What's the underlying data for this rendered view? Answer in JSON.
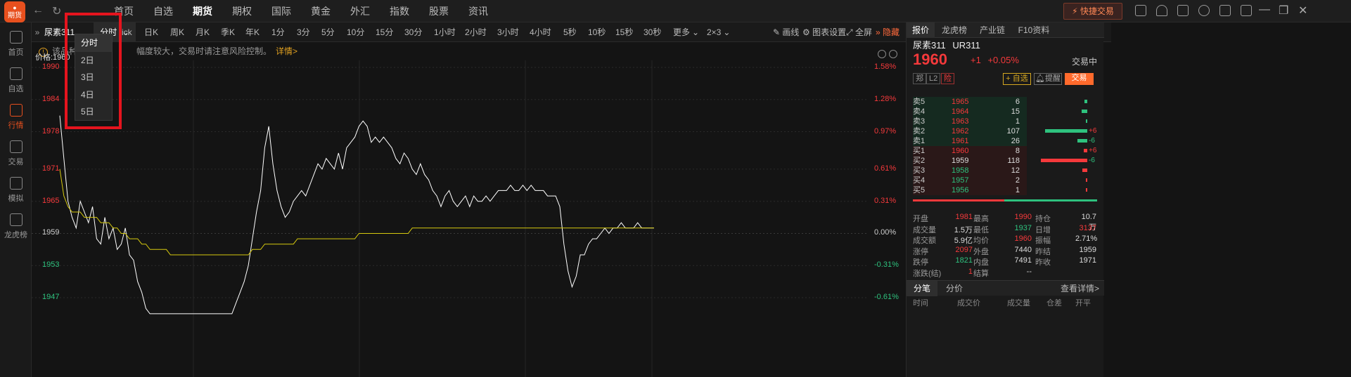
{
  "app": {
    "logo_label": "期货"
  },
  "nav": [
    "首页",
    "自选",
    "期货",
    "期权",
    "国际",
    "黄金",
    "外汇",
    "指数",
    "股票",
    "资讯"
  ],
  "nav_active": 2,
  "quick_trade": "快捷交易",
  "sidebar": [
    {
      "label": "首页",
      "icon": "home-icon"
    },
    {
      "label": "自选",
      "icon": "watchlist-icon"
    },
    {
      "label": "行情",
      "icon": "market-icon"
    },
    {
      "label": "交易",
      "icon": "trade-icon"
    },
    {
      "label": "模拟",
      "icon": "gamepad-icon"
    },
    {
      "label": "龙虎榜",
      "icon": "database-icon"
    }
  ],
  "sidebar_active": 2,
  "toolbar": {
    "symbol": "尿素311",
    "period": "分时",
    "tick_partial": "ick",
    "periods": [
      "日K",
      "周K",
      "月K",
      "季K",
      "年K",
      "1分",
      "3分",
      "5分",
      "10分",
      "15分",
      "30分",
      "1小时",
      "2小时",
      "3小时",
      "4小时",
      "5秒",
      "10秒",
      "15秒",
      "30秒",
      "更多",
      "2×3"
    ],
    "draw": "画线",
    "settings": "图表设置",
    "fullscreen": "全屏",
    "hide": "隐藏"
  },
  "notice": {
    "text_a": "该品种近",
    "text_b": "幅度较大，交易时请注意风险控制。",
    "more": "详情>"
  },
  "dropdown": [
    "分时",
    "2日",
    "3日",
    "4日",
    "5日"
  ],
  "price_label": "价格:1960",
  "chart": {
    "up": "#f5393b",
    "down": "#2ec27e",
    "line": "#ffffff",
    "avg": "#d6c90e"
  },
  "chart_data": {
    "type": "line",
    "ylim": [
      1944,
      1992
    ],
    "y_ticks": [
      1990,
      1984,
      1978,
      1971,
      1965,
      1959,
      1953,
      1947
    ],
    "pct_ticks": [
      "1.58%",
      "1.28%",
      "0.97%",
      "0.61%",
      "0.31%",
      "0.00%",
      "-0.31%",
      "-0.61%"
    ],
    "series": [
      {
        "values": [
          1981,
          1973,
          1965,
          1962,
          1960,
          1965,
          1963,
          1961,
          1964,
          1958,
          1957,
          1962,
          1958,
          1960,
          1956,
          1957,
          1960,
          1955,
          1954,
          1950,
          1948,
          1945,
          1944,
          1944,
          1944,
          1944,
          1944,
          1944,
          1944,
          1944,
          1944,
          1944,
          1944,
          1944,
          1944,
          1944,
          1944,
          1944,
          1944,
          1944,
          1944,
          1944,
          1944,
          1946,
          1948,
          1950,
          1953,
          1958,
          1963,
          1967,
          1975,
          1979,
          1972,
          1967,
          1964,
          1962,
          1963,
          1965,
          1966,
          1967,
          1966,
          1968,
          1970,
          1972,
          1971,
          1973,
          1972,
          1971,
          1974,
          1971,
          1975,
          1976,
          1977,
          1979,
          1980,
          1979,
          1976,
          1977,
          1976,
          1977,
          1976,
          1975,
          1973,
          1972,
          1974,
          1973,
          1971,
          1970,
          1972,
          1970,
          1969,
          1967,
          1966,
          1964,
          1966,
          1967,
          1965,
          1964,
          1965,
          1966,
          1964,
          1966,
          1965,
          1965,
          1966,
          1965,
          1966,
          1967,
          1967,
          1967,
          1968,
          1967,
          1967,
          1968,
          1967,
          1968,
          1967,
          1967,
          1967,
          1966,
          1966,
          1966,
          1964,
          1957,
          1952,
          1949,
          1951,
          1955,
          1955,
          1957,
          1958,
          1958,
          1959,
          1960,
          1959,
          1960,
          1960,
          1961,
          1960,
          1960,
          1960,
          1961,
          1960,
          1960,
          1960,
          1960
        ]
      },
      {
        "values": [
          1971,
          1966,
          1964,
          1963,
          1963,
          1963,
          1962,
          1962,
          1962,
          1962,
          1961,
          1961,
          1961,
          1960,
          1960,
          1959,
          1959,
          1958,
          1958,
          1958,
          1957,
          1957,
          1956,
          1956,
          1956,
          1956,
          1956,
          1955,
          1955,
          1955,
          1955,
          1955,
          1955,
          1955,
          1955,
          1955,
          1955,
          1955,
          1955,
          1955,
          1955,
          1955,
          1955,
          1955,
          1955,
          1955,
          1955,
          1956,
          1956,
          1956,
          1957,
          1957,
          1957,
          1957,
          1957,
          1957,
          1957,
          1957,
          1958,
          1958,
          1958,
          1958,
          1958,
          1958,
          1958,
          1958,
          1958,
          1958,
          1958,
          1958,
          1958,
          1958,
          1958,
          1959,
          1959,
          1959,
          1959,
          1959,
          1959,
          1959,
          1959,
          1959,
          1959,
          1959,
          1959,
          1959,
          1960,
          1960,
          1960,
          1960,
          1960,
          1960,
          1960,
          1960,
          1960,
          1960,
          1960,
          1960,
          1960,
          1960,
          1960,
          1960,
          1960,
          1960,
          1960,
          1960,
          1960,
          1960,
          1960,
          1960,
          1960,
          1960,
          1960,
          1960,
          1960,
          1960,
          1960,
          1960,
          1960,
          1960,
          1960,
          1960,
          1960,
          1960,
          1960,
          1960,
          1960,
          1960,
          1960,
          1960,
          1960,
          1960,
          1960,
          1960,
          1960,
          1960,
          1960,
          1960,
          1960,
          1960,
          1960,
          1960,
          1960,
          1960,
          1960,
          1960
        ]
      }
    ]
  },
  "quote": {
    "tabs": [
      "报价",
      "龙虎榜",
      "产业链",
      "F10资料"
    ],
    "name": "尿素311",
    "code": "UR311",
    "price": "1960",
    "change": "+1",
    "change_pct": "+0.05%",
    "state": "交易中",
    "tags": [
      "郑",
      "L2",
      "险"
    ],
    "watch": "+ 自选",
    "alert": "提醒",
    "trade": "交易",
    "asks": [
      {
        "label": "卖5",
        "price": "1965",
        "vol": "6",
        "delta": ""
      },
      {
        "label": "卖4",
        "price": "1964",
        "vol": "15",
        "delta": ""
      },
      {
        "label": "卖3",
        "price": "1963",
        "vol": "1",
        "delta": ""
      },
      {
        "label": "卖2",
        "price": "1962",
        "vol": "107",
        "delta": "+6"
      },
      {
        "label": "卖1",
        "price": "1961",
        "vol": "26",
        "delta": "-6"
      }
    ],
    "bids": [
      {
        "label": "买1",
        "price": "1960",
        "vol": "8",
        "delta": "+6"
      },
      {
        "label": "买2",
        "price": "1959",
        "vol": "118",
        "delta": "-6"
      },
      {
        "label": "买3",
        "price": "1958",
        "vol": "12",
        "delta": ""
      },
      {
        "label": "买4",
        "price": "1957",
        "vol": "2",
        "delta": ""
      },
      {
        "label": "买5",
        "price": "1956",
        "vol": "1",
        "delta": ""
      }
    ],
    "ask_fill": [
      0.03,
      0.07,
      0.01,
      0.5,
      0.12
    ],
    "bid_fill": [
      0.04,
      0.55,
      0.06,
      0.01,
      0.005
    ],
    "stats": [
      [
        "开盘",
        "1981",
        "最高",
        "1990",
        "持仓",
        "10.7万"
      ],
      [
        "成交量",
        "1.5万",
        "最低",
        "1937",
        "日增",
        "3137"
      ],
      [
        "成交额",
        "5.9亿",
        "均价",
        "1960",
        "振幅",
        "2.71%"
      ],
      [
        "涨停",
        "2097",
        "外盘",
        "7440",
        "昨结",
        "1959"
      ],
      [
        "跌停",
        "1821",
        "内盘",
        "7491",
        "昨收",
        "1971"
      ],
      [
        "涨跌(结)",
        "1",
        "结算",
        "--",
        "",
        ""
      ]
    ],
    "bottom_tabs": [
      "分笔",
      "分价"
    ],
    "detail": "查看详情>",
    "headers": [
      "时间",
      "成交价",
      "成交量",
      "仓差",
      "开平"
    ]
  }
}
